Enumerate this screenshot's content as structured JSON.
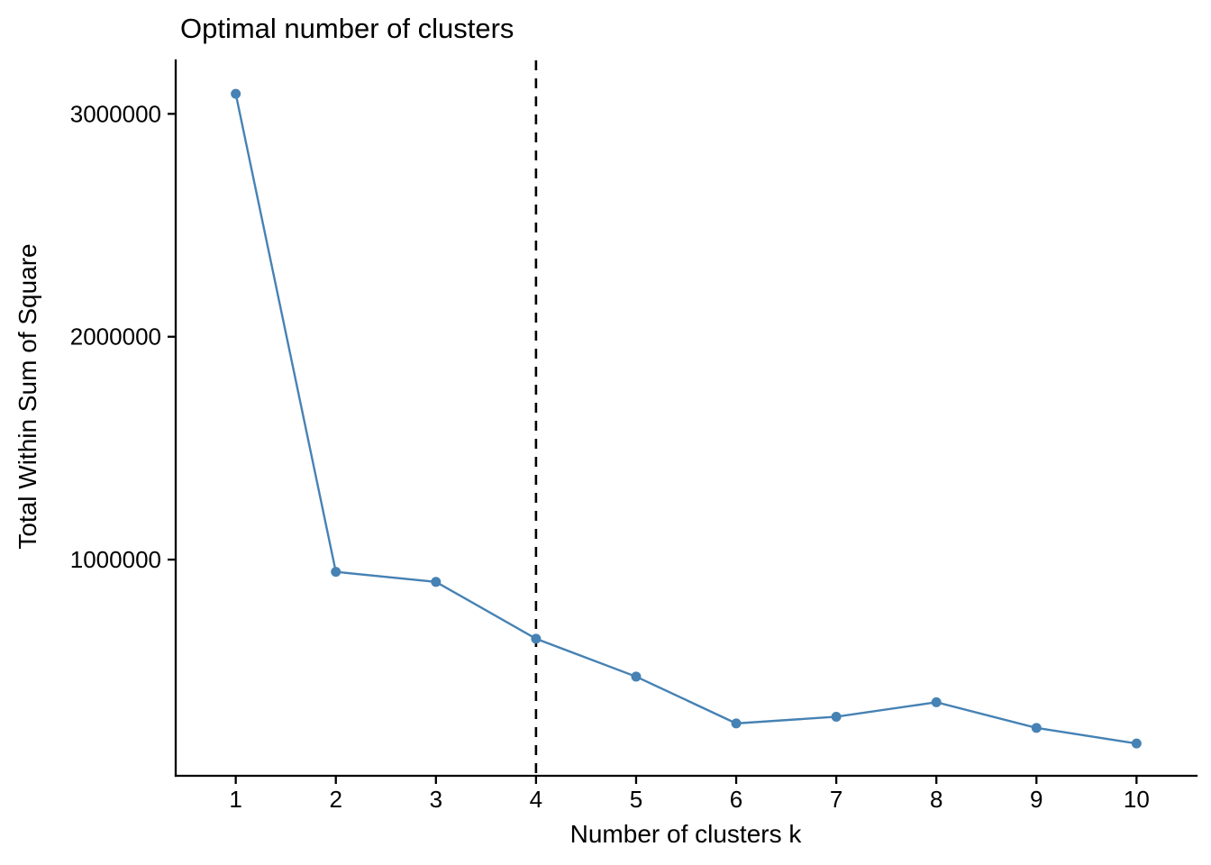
{
  "chart_data": {
    "type": "line",
    "title": "Optimal number of clusters",
    "xlabel": "Number of clusters k",
    "ylabel": "Total Within Sum of Square",
    "x": [
      1,
      2,
      3,
      4,
      5,
      6,
      7,
      8,
      9,
      10
    ],
    "series": [
      {
        "name": "Total Within Sum of Square",
        "values": [
          3090000,
          945000,
          900000,
          645000,
          475000,
          265000,
          295000,
          360000,
          245000,
          175000
        ]
      }
    ],
    "x_ticks": [
      1,
      2,
      3,
      4,
      5,
      6,
      7,
      8,
      9,
      10
    ],
    "x_tick_labels": [
      "1",
      "2",
      "3",
      "4",
      "5",
      "6",
      "7",
      "8",
      "9",
      "10"
    ],
    "y_ticks": [
      1000000,
      2000000,
      3000000
    ],
    "y_tick_labels": [
      "1000000",
      "2000000",
      "3000000"
    ],
    "xlim": [
      0.4,
      10.6
    ],
    "ylim": [
      30000,
      3240000
    ],
    "grid": false,
    "legend": "none",
    "annotations": [
      {
        "type": "vline",
        "x": 4,
        "style": "dashed",
        "color": "#000000"
      }
    ],
    "line_color": "#4682B4",
    "point_color": "#4682B4",
    "axis_color": "#000000",
    "background_color": "#ffffff"
  }
}
